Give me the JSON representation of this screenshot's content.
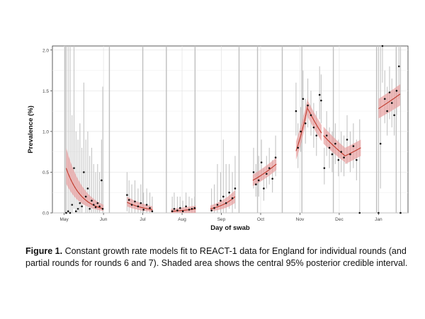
{
  "chart_data": {
    "type": "line",
    "title": "",
    "xlabel": "Day of swab",
    "ylabel": "Prevalence (%)",
    "ylim": [
      0,
      2.05
    ],
    "x_ticks": [
      "May",
      "Jun",
      "Jul",
      "Aug",
      "Sep",
      "Oct",
      "Nov",
      "Dec",
      "Jan"
    ],
    "y_ticks": [
      "0.0",
      "0.5",
      "1.0",
      "1.5",
      "2.0"
    ],
    "grid": true,
    "legend": "none",
    "colors": {
      "fit_line": "#c0392b",
      "band": "#e8a0a0",
      "points": "#111111",
      "errorbars": "#c4c4c4",
      "round_boundaries": "#bfbfbf"
    },
    "round_boundaries_month": [
      0.02,
      1.15,
      2.0,
      2.6,
      3.33,
      4.45,
      4.92,
      5.55,
      6.05,
      6.85,
      7.95,
      8.45
    ],
    "rounds": [
      {
        "x_start": 0.05,
        "x_end": 1.0,
        "fit_start": 0.55,
        "fit_end": 0.05,
        "band_start": [
          0.36,
          0.8
        ],
        "band_end": [
          0.02,
          0.1
        ]
      },
      {
        "x_start": 1.6,
        "x_end": 2.25,
        "fit_start": 0.13,
        "fit_end": 0.04,
        "band_start": [
          0.08,
          0.2
        ],
        "band_end": [
          0.01,
          0.08
        ]
      },
      {
        "x_start": 2.72,
        "x_end": 3.35,
        "fit_start": 0.02,
        "fit_end": 0.05,
        "band_start": [
          0.0,
          0.05
        ],
        "band_end": [
          0.02,
          0.09
        ]
      },
      {
        "x_start": 3.72,
        "x_end": 4.35,
        "fit_start": 0.05,
        "fit_end": 0.2,
        "band_start": [
          0.02,
          0.09
        ],
        "band_end": [
          0.15,
          0.28
        ]
      },
      {
        "x_start": 4.8,
        "x_end": 5.4,
        "fit_start": 0.4,
        "fit_end": 0.6,
        "band_start": [
          0.33,
          0.47
        ],
        "band_end": [
          0.53,
          0.68
        ]
      },
      {
        "x_start": 5.9,
        "x_end": 6.2,
        "fit_start": 0.76,
        "fit_end": 1.32,
        "band_start": [
          0.65,
          0.88
        ],
        "band_end": [
          1.23,
          1.42
        ]
      },
      {
        "x_start": 6.2,
        "x_end": 6.55,
        "fit_start": 1.28,
        "fit_end": 0.98,
        "band_start": [
          1.18,
          1.38
        ],
        "band_end": [
          0.88,
          1.08
        ]
      },
      {
        "x_start": 6.6,
        "x_end": 7.15,
        "fit_start": 0.95,
        "fit_end": 0.7,
        "band_start": [
          0.85,
          1.06
        ],
        "band_end": [
          0.62,
          0.8
        ]
      },
      {
        "x_start": 7.15,
        "x_end": 7.55,
        "fit_start": 0.7,
        "fit_end": 0.8,
        "band_start": [
          0.6,
          0.8
        ],
        "band_end": [
          0.7,
          0.9
        ]
      },
      {
        "x_start": 8.0,
        "x_end": 8.55,
        "fit_start": 1.28,
        "fit_end": 1.46,
        "band_start": [
          1.16,
          1.4
        ],
        "band_end": [
          1.32,
          1.58
        ]
      }
    ],
    "points": [
      [
        0.05,
        0,
        0,
        2.05
      ],
      [
        0.1,
        0.02,
        0,
        2.05
      ],
      [
        0.15,
        0,
        0,
        2.05
      ],
      [
        0.2,
        0.1,
        0,
        1.2
      ],
      [
        0.25,
        0.55,
        0.05,
        2.05
      ],
      [
        0.3,
        0.02,
        0,
        1.0
      ],
      [
        0.35,
        0.05,
        0,
        0.9
      ],
      [
        0.4,
        0.12,
        0,
        1.1
      ],
      [
        0.45,
        0.08,
        0,
        0.8
      ],
      [
        0.5,
        0.5,
        0.1,
        1.6
      ],
      [
        0.55,
        0.2,
        0,
        0.9
      ],
      [
        0.6,
        0.3,
        0,
        1.0
      ],
      [
        0.65,
        0.05,
        0,
        0.7
      ],
      [
        0.7,
        0.15,
        0,
        0.8
      ],
      [
        0.75,
        0.1,
        0,
        0.6
      ],
      [
        0.8,
        0.07,
        0,
        0.5
      ],
      [
        0.85,
        0.12,
        0,
        0.6
      ],
      [
        0.9,
        0.08,
        0,
        0.5
      ],
      [
        0.95,
        0.4,
        0.05,
        0.9
      ],
      [
        0.98,
        0.05,
        0,
        1.55
      ],
      [
        1.6,
        0.22,
        0.02,
        0.5
      ],
      [
        1.65,
        0.16,
        0,
        0.4
      ],
      [
        1.72,
        0.1,
        0,
        0.35
      ],
      [
        1.8,
        0.14,
        0,
        0.4
      ],
      [
        1.88,
        0.08,
        0,
        0.3
      ],
      [
        1.95,
        0.12,
        0,
        0.35
      ],
      [
        2.02,
        0.04,
        0,
        0.25
      ],
      [
        2.1,
        0.1,
        0,
        0.3
      ],
      [
        2.18,
        0.06,
        0,
        0.25
      ],
      [
        2.24,
        0.02,
        0,
        0.2
      ],
      [
        2.75,
        0.02,
        0,
        0.2
      ],
      [
        2.8,
        0.05,
        0,
        0.25
      ],
      [
        2.88,
        0.03,
        0,
        0.2
      ],
      [
        2.95,
        0.06,
        0,
        0.2
      ],
      [
        3.02,
        0.02,
        0,
        0.15
      ],
      [
        3.1,
        0.08,
        0,
        0.25
      ],
      [
        3.18,
        0.04,
        0,
        0.2
      ],
      [
        3.25,
        0.05,
        0,
        0.18
      ],
      [
        3.32,
        0.06,
        0,
        0.2
      ],
      [
        3.75,
        0.03,
        0,
        0.3
      ],
      [
        3.82,
        0.06,
        0,
        0.35
      ],
      [
        3.9,
        0.1,
        0,
        0.6
      ],
      [
        3.98,
        0.15,
        0,
        0.5
      ],
      [
        4.05,
        0.2,
        0,
        0.9
      ],
      [
        4.12,
        0.12,
        0,
        0.6
      ],
      [
        4.2,
        0.25,
        0.05,
        0.6
      ],
      [
        4.28,
        0.18,
        0,
        0.5
      ],
      [
        4.35,
        0.3,
        0.05,
        0.7
      ],
      [
        4.82,
        0.5,
        0.3,
        0.8
      ],
      [
        4.88,
        0.35,
        0.2,
        0.6
      ],
      [
        4.95,
        0.4,
        0.2,
        0.7
      ],
      [
        5.02,
        0.62,
        0.4,
        0.9
      ],
      [
        5.08,
        0.3,
        0.15,
        0.55
      ],
      [
        5.15,
        0.48,
        0.3,
        0.7
      ],
      [
        5.22,
        0.55,
        0.35,
        0.8
      ],
      [
        5.3,
        0.42,
        0.25,
        0.65
      ],
      [
        5.38,
        0.68,
        0.45,
        0.95
      ],
      [
        5.9,
        1.25,
        0.95,
        1.6
      ],
      [
        5.95,
        0.8,
        0.55,
        1.1
      ],
      [
        6.02,
        1.0,
        0.75,
        1.3
      ],
      [
        6.08,
        1.4,
        1.1,
        1.75
      ],
      [
        6.14,
        1.1,
        0.85,
        1.4
      ],
      [
        6.2,
        1.32,
        1.05,
        1.65
      ],
      [
        6.28,
        1.2,
        0.95,
        1.5
      ],
      [
        6.35,
        1.05,
        0.8,
        1.35
      ],
      [
        6.42,
        0.95,
        0.7,
        1.25
      ],
      [
        6.5,
        1.45,
        1.15,
        1.8
      ],
      [
        6.54,
        1.38,
        1.1,
        1.7
      ],
      [
        6.62,
        0.55,
        0.35,
        0.8
      ],
      [
        6.68,
        0.95,
        0.7,
        1.25
      ],
      [
        6.75,
        0.8,
        0.55,
        1.05
      ],
      [
        6.82,
        0.72,
        0.5,
        1.0
      ],
      [
        6.9,
        0.85,
        0.6,
        1.1
      ],
      [
        6.98,
        0.65,
        0.45,
        0.9
      ],
      [
        7.05,
        0.75,
        0.5,
        1.0
      ],
      [
        7.12,
        0.68,
        0.45,
        0.95
      ],
      [
        7.2,
        0.9,
        0.6,
        1.2
      ],
      [
        7.28,
        0.72,
        0.5,
        1.0
      ],
      [
        7.36,
        0.82,
        0.55,
        1.1
      ],
      [
        7.44,
        0.65,
        0.4,
        0.9
      ],
      [
        7.52,
        0.0,
        0,
        1.15
      ],
      [
        8.0,
        0,
        0,
        2.05
      ],
      [
        8.05,
        0.85,
        0.3,
        2.05
      ],
      [
        8.1,
        2.05,
        1.6,
        2.05
      ],
      [
        8.16,
        1.4,
        1.1,
        1.75
      ],
      [
        8.22,
        1.25,
        0.95,
        1.55
      ],
      [
        8.28,
        1.48,
        1.15,
        1.8
      ],
      [
        8.34,
        1.35,
        1.05,
        1.65
      ],
      [
        8.4,
        1.2,
        0.95,
        1.5
      ],
      [
        8.46,
        1.5,
        1.2,
        1.8
      ],
      [
        8.52,
        1.8,
        1.4,
        2.05
      ],
      [
        8.56,
        0.0,
        0,
        2.05
      ]
    ]
  },
  "caption": {
    "label": "Figure 1.",
    "text": " Constant growth rate models fit to REACT-1 data for England for individual rounds (and partial rounds for rounds 6 and 7). Shaded area shows the central 95% posterior credible interval."
  }
}
